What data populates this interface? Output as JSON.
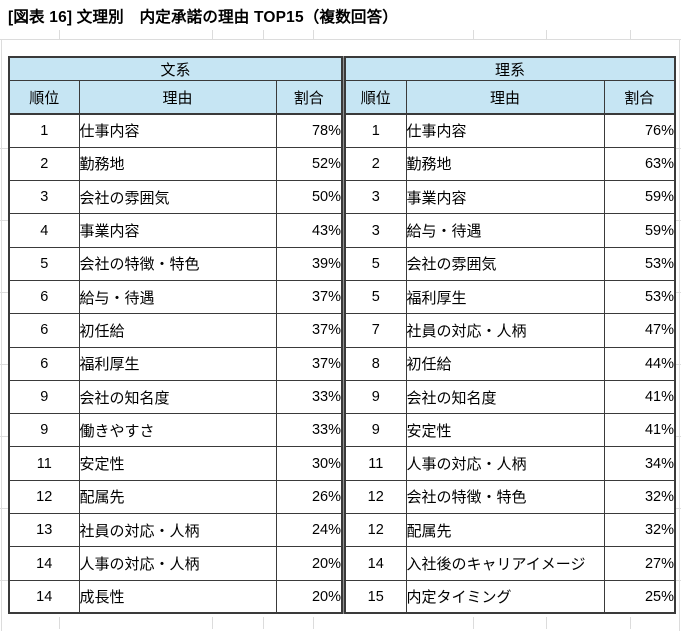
{
  "title": "[図表 16] 文理別　内定承諾の理由 TOP15（複数回答）",
  "colors": {
    "header_bg": "#C6E5F3",
    "border": "#3A3A3A",
    "gridline": "#DCDCDC"
  },
  "tables": [
    {
      "group": "文系",
      "columns": [
        "順位",
        "理由",
        "割合"
      ],
      "rows": [
        {
          "rank": "1",
          "reason": "仕事内容",
          "share": "78%"
        },
        {
          "rank": "2",
          "reason": "勤務地",
          "share": "52%"
        },
        {
          "rank": "3",
          "reason": "会社の雰囲気",
          "share": "50%"
        },
        {
          "rank": "4",
          "reason": "事業内容",
          "share": "43%"
        },
        {
          "rank": "5",
          "reason": "会社の特徴・特色",
          "share": "39%"
        },
        {
          "rank": "6",
          "reason": "給与・待遇",
          "share": "37%"
        },
        {
          "rank": "6",
          "reason": "初任給",
          "share": "37%"
        },
        {
          "rank": "6",
          "reason": "福利厚生",
          "share": "37%"
        },
        {
          "rank": "9",
          "reason": "会社の知名度",
          "share": "33%"
        },
        {
          "rank": "9",
          "reason": "働きやすさ",
          "share": "33%"
        },
        {
          "rank": "11",
          "reason": "安定性",
          "share": "30%"
        },
        {
          "rank": "12",
          "reason": "配属先",
          "share": "26%"
        },
        {
          "rank": "13",
          "reason": "社員の対応・人柄",
          "share": "24%"
        },
        {
          "rank": "14",
          "reason": "人事の対応・人柄",
          "share": "20%"
        },
        {
          "rank": "14",
          "reason": "成長性",
          "share": "20%"
        }
      ]
    },
    {
      "group": "理系",
      "columns": [
        "順位",
        "理由",
        "割合"
      ],
      "rows": [
        {
          "rank": "1",
          "reason": "仕事内容",
          "share": "76%"
        },
        {
          "rank": "2",
          "reason": "勤務地",
          "share": "63%"
        },
        {
          "rank": "3",
          "reason": "事業内容",
          "share": "59%"
        },
        {
          "rank": "3",
          "reason": "給与・待遇",
          "share": "59%"
        },
        {
          "rank": "5",
          "reason": "会社の雰囲気",
          "share": "53%"
        },
        {
          "rank": "5",
          "reason": "福利厚生",
          "share": "53%"
        },
        {
          "rank": "7",
          "reason": "社員の対応・人柄",
          "share": "47%"
        },
        {
          "rank": "8",
          "reason": "初任給",
          "share": "44%"
        },
        {
          "rank": "9",
          "reason": "会社の知名度",
          "share": "41%"
        },
        {
          "rank": "9",
          "reason": "安定性",
          "share": "41%"
        },
        {
          "rank": "11",
          "reason": "人事の対応・人柄",
          "share": "34%"
        },
        {
          "rank": "12",
          "reason": "会社の特徴・特色",
          "share": "32%"
        },
        {
          "rank": "12",
          "reason": "配属先",
          "share": "32%"
        },
        {
          "rank": "14",
          "reason": "入社後のキャリアイメージ",
          "share": "27%"
        },
        {
          "rank": "15",
          "reason": "内定タイミング",
          "share": "25%"
        }
      ]
    }
  ]
}
